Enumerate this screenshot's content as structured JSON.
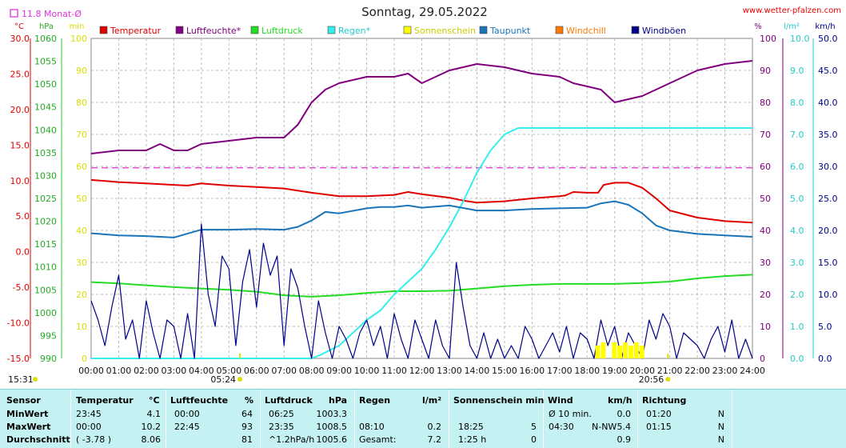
{
  "header": {
    "title": "Sonntag, 29.05.2022",
    "site": "www.wetter-pfalzen.com",
    "month_indicator": "11.8 Monat-Ø"
  },
  "units": {
    "left": [
      "°C",
      "hPa",
      "min"
    ],
    "right": [
      "%",
      "l/m²",
      "km/h"
    ]
  },
  "legend": [
    "Temperatur",
    "Luftfeuchte*",
    "Luftdruck",
    "Regen*",
    "Sonnenschein",
    "Taupunkt",
    "Windchill",
    "Windböen"
  ],
  "chart_data": {
    "type": "line",
    "x_ticks": [
      "00:00",
      "01:00",
      "02:00",
      "03:00",
      "04:00",
      "05:00",
      "06:00",
      "07:00",
      "08:00",
      "09:00",
      "10:00",
      "11:00",
      "12:00",
      "13:00",
      "14:00",
      "15:00",
      "16:00",
      "17:00",
      "18:00",
      "19:00",
      "20:00",
      "21:00",
      "22:00",
      "23:00",
      "24:00"
    ],
    "x_range": [
      0,
      24
    ],
    "axes": {
      "temperature": {
        "unit": "°C",
        "range": [
          -15,
          30
        ],
        "ticks": [
          "30.0",
          "25.0",
          "20.0",
          "15.0",
          "10.0",
          "5.0",
          "0.0",
          "-5.0",
          "-10.0",
          "-15.0"
        ]
      },
      "pressure": {
        "unit": "hPa",
        "range": [
          990,
          1060
        ],
        "ticks": [
          "1060",
          "1055",
          "1050",
          "1045",
          "1040",
          "1035",
          "1030",
          "1025",
          "1020",
          "1015",
          "1010",
          "1005",
          "1000",
          "995",
          "990"
        ]
      },
      "sunshine": {
        "unit": "min",
        "range": [
          0,
          100
        ],
        "ticks": [
          "100",
          "90",
          "80",
          "70",
          "60",
          "50",
          "40",
          "30",
          "20",
          "10",
          "0"
        ]
      },
      "humidity": {
        "unit": "%",
        "range": [
          0,
          100
        ],
        "ticks": [
          "100",
          "90",
          "80",
          "70",
          "60",
          "50",
          "40",
          "30",
          "20",
          "10",
          "0"
        ]
      },
      "rain": {
        "unit": "l/m²",
        "range": [
          0,
          10
        ],
        "ticks": [
          "10.0",
          "9.0",
          "8.0",
          "7.0",
          "6.0",
          "5.0",
          "4.0",
          "3.0",
          "2.0",
          "1.0",
          "0.0"
        ]
      },
      "wind": {
        "unit": "km/h",
        "range": [
          0,
          50
        ],
        "ticks": [
          "50.0",
          "45.0",
          "40.0",
          "35.0",
          "30.0",
          "25.0",
          "20.0",
          "15.0",
          "10.0",
          "5.0",
          "0.0"
        ]
      }
    },
    "markers": {
      "sunrise": "05:24",
      "sunset": "20:56",
      "time_now": "15:31"
    },
    "month_avg_temp": 11.8,
    "colors": {
      "temperature": "#e00000",
      "humidity": "#800080",
      "pressure": "#22dd22",
      "rain": "#33eeee",
      "sunshine": "#ffff00",
      "dewpoint": "#1a74b8",
      "windchill": "#ff7a00",
      "gusts": "#00008b",
      "month_avg": "#dd33dd"
    },
    "series": [
      {
        "name": "Temperatur",
        "axis": "temperature",
        "x": [
          0,
          1,
          2,
          3,
          3.5,
          4,
          5,
          6,
          7,
          8,
          9,
          10,
          11,
          11.5,
          12,
          13,
          13.5,
          14,
          15,
          16,
          17,
          17.2,
          17.5,
          18,
          18.4,
          18.6,
          19,
          19.5,
          20,
          20.5,
          21,
          22,
          23,
          24
        ],
        "y": [
          10.1,
          9.8,
          9.6,
          9.4,
          9.3,
          9.6,
          9.3,
          9.1,
          8.9,
          8.3,
          7.8,
          7.8,
          8.0,
          8.4,
          8.1,
          7.6,
          7.2,
          6.9,
          7.1,
          7.5,
          7.8,
          7.9,
          8.4,
          8.3,
          8.3,
          9.4,
          9.7,
          9.7,
          9.0,
          7.5,
          5.8,
          4.8,
          4.3,
          4.1
        ]
      },
      {
        "name": "Luftfeuchte*",
        "axis": "humidity",
        "x": [
          0,
          1,
          2,
          2.5,
          3,
          3.5,
          4,
          5,
          6,
          7,
          7.5,
          8,
          8.5,
          9,
          10,
          11,
          11.5,
          12,
          13,
          14,
          15,
          16,
          17,
          17.5,
          18,
          18.5,
          19,
          19.5,
          20,
          21,
          22,
          23,
          24
        ],
        "y": [
          64,
          65,
          65,
          67,
          65,
          65,
          67,
          68,
          69,
          69,
          73,
          80,
          84,
          86,
          88,
          88,
          89,
          86,
          90,
          92,
          91,
          89,
          88,
          86,
          85,
          84,
          80,
          81,
          82,
          86,
          90,
          92,
          93
        ]
      },
      {
        "name": "Luftdruck",
        "axis": "pressure",
        "x": [
          0,
          1,
          2,
          3,
          4,
          5,
          6,
          7,
          8,
          9,
          10,
          11,
          12,
          13,
          14,
          15,
          16,
          17,
          18,
          19,
          20,
          21,
          22,
          23,
          24
        ],
        "y": [
          1006.7,
          1006.4,
          1006.0,
          1005.6,
          1005.3,
          1005.0,
          1004.6,
          1003.8,
          1003.5,
          1003.8,
          1004.3,
          1004.7,
          1004.7,
          1004.8,
          1005.3,
          1005.8,
          1006.1,
          1006.3,
          1006.3,
          1006.3,
          1006.5,
          1006.8,
          1007.5,
          1008.0,
          1008.3
        ]
      },
      {
        "name": "Regen*",
        "axis": "rain",
        "x": [
          0,
          8,
          8.3,
          9,
          9.5,
          10,
          10.5,
          11,
          11.5,
          12,
          12.5,
          13,
          13.5,
          14,
          14.5,
          15,
          15.5,
          16,
          17,
          18,
          19,
          20,
          21,
          22,
          23,
          24
        ],
        "y": [
          0,
          0,
          0.1,
          0.4,
          0.8,
          1.2,
          1.5,
          2.0,
          2.4,
          2.8,
          3.4,
          4.1,
          4.9,
          5.8,
          6.5,
          7.0,
          7.2,
          7.2,
          7.2,
          7.2,
          7.2,
          7.2,
          7.2,
          7.2,
          7.2,
          7.2
        ]
      },
      {
        "name": "Taupunkt",
        "axis": "temperature",
        "x": [
          0,
          1,
          2,
          3,
          4,
          5,
          6,
          7,
          7.5,
          8,
          8.5,
          9,
          10,
          10.5,
          11,
          11.5,
          12,
          13,
          14,
          15,
          16,
          17,
          18,
          18.5,
          19,
          19.5,
          20,
          20.5,
          21,
          22,
          23,
          24
        ],
        "y": [
          2.6,
          2.3,
          2.2,
          2.0,
          3.1,
          3.1,
          3.2,
          3.1,
          3.5,
          4.4,
          5.6,
          5.4,
          6.1,
          6.3,
          6.3,
          6.5,
          6.2,
          6.5,
          5.8,
          5.8,
          6.0,
          6.1,
          6.2,
          6.8,
          7.1,
          6.6,
          5.4,
          3.7,
          3.0,
          2.5,
          2.3,
          2.1
        ]
      },
      {
        "name": "Windböen",
        "axis": "wind",
        "x": [
          0,
          0.25,
          0.5,
          0.75,
          1,
          1.25,
          1.5,
          1.75,
          2,
          2.25,
          2.5,
          2.75,
          3,
          3.25,
          3.5,
          3.75,
          4,
          4.25,
          4.5,
          4.75,
          5,
          5.25,
          5.5,
          5.75,
          6,
          6.25,
          6.5,
          6.75,
          7,
          7.25,
          7.5,
          7.75,
          8,
          8.25,
          8.5,
          8.75,
          9,
          9.25,
          9.5,
          9.75,
          10,
          10.25,
          10.5,
          10.75,
          11,
          11.25,
          11.5,
          11.75,
          12,
          12.25,
          12.5,
          12.75,
          13,
          13.25,
          13.5,
          13.75,
          14,
          14.25,
          14.5,
          14.75,
          15,
          15.25,
          15.5,
          15.75,
          16,
          16.25,
          16.5,
          16.75,
          17,
          17.25,
          17.5,
          17.75,
          18,
          18.25,
          18.5,
          18.75,
          19,
          19.25,
          19.5,
          19.75,
          20,
          20.25,
          20.5,
          20.75,
          21,
          21.25,
          21.5,
          21.75,
          22,
          22.25,
          22.5,
          22.75,
          23,
          23.25,
          23.5,
          23.75,
          24
        ],
        "y": [
          9,
          6,
          2,
          8,
          13,
          3,
          6,
          0,
          9,
          4,
          0,
          6,
          5,
          0,
          7,
          0,
          21,
          10,
          5,
          16,
          14,
          2,
          12,
          17,
          8,
          18,
          13,
          16,
          2,
          14,
          11,
          5,
          0,
          9,
          4,
          0,
          5,
          3,
          0,
          4,
          6,
          2,
          5,
          0,
          7,
          3,
          0,
          6,
          3,
          0,
          6,
          2,
          0,
          15,
          8,
          2,
          0,
          4,
          0,
          3,
          0,
          2,
          0,
          5,
          3,
          0,
          2,
          4,
          1,
          5,
          0,
          4,
          3,
          0,
          6,
          2,
          5,
          0,
          4,
          2,
          0,
          6,
          3,
          7,
          5,
          0,
          4,
          3,
          2,
          0,
          3,
          5,
          1,
          6,
          0,
          3,
          0
        ]
      },
      {
        "name": "Sonnenschein",
        "axis": "sunshine",
        "x": [
          18.4,
          18.6,
          18.8,
          19.0,
          19.2,
          19.4,
          19.6,
          19.8,
          20.0
        ],
        "y": [
          4,
          5,
          0,
          5,
          4,
          5,
          4,
          5,
          4
        ]
      }
    ]
  },
  "stats_table": {
    "headers": {
      "sensor": "Sensor",
      "temp": [
        "Temperatur",
        "°C"
      ],
      "hum": [
        "Luftfeuchte",
        "%"
      ],
      "press": [
        "Luftdruck",
        "hPa"
      ],
      "rain": [
        "Regen",
        "l/m²"
      ],
      "sun": [
        "Sonnenschein min"
      ],
      "wind": [
        "Wind",
        "km/h"
      ],
      "dir": [
        "Richtung"
      ]
    },
    "rows": [
      {
        "label": "MinWert",
        "temp_t": "23:45",
        "temp_v": "4.1",
        "hum_t": "00:00",
        "hum_v": "64",
        "press_t": "06:25",
        "press_v": "1003.3",
        "rain_t": "",
        "rain_v": "",
        "sun_t": "",
        "sun_v": "",
        "wind_t": "Ø 10 min.",
        "wind_d": "",
        "wind_v": "0.0",
        "dir_t": "01:20",
        "dir_v": "N"
      },
      {
        "label": "MaxWert",
        "temp_t": "00:00",
        "temp_v": "10.2",
        "hum_t": "22:45",
        "hum_v": "93",
        "press_t": "23:35",
        "press_v": "1008.5",
        "rain_t": "08:10",
        "rain_v": "0.2",
        "sun_t": "18:25",
        "sun_v": "5",
        "wind_t": "04:30",
        "wind_d": "N-NW",
        "wind_v": "5.4",
        "dir_t": "01:15",
        "dir_v": "N"
      },
      {
        "label": "Durchschnitt",
        "temp_t": "( -3.78 )",
        "temp_v": "8.06",
        "hum_t": "",
        "hum_v": "81",
        "press_t": "^1.2hPa/h",
        "press_v": "1005.6",
        "rain_t": "Gesamt:",
        "rain_v": "7.2",
        "sun_t": "1:25 h",
        "sun_v": "0",
        "wind_t": "",
        "wind_d": "",
        "wind_v": "0.9",
        "dir_t": "",
        "dir_v": "N"
      }
    ]
  }
}
